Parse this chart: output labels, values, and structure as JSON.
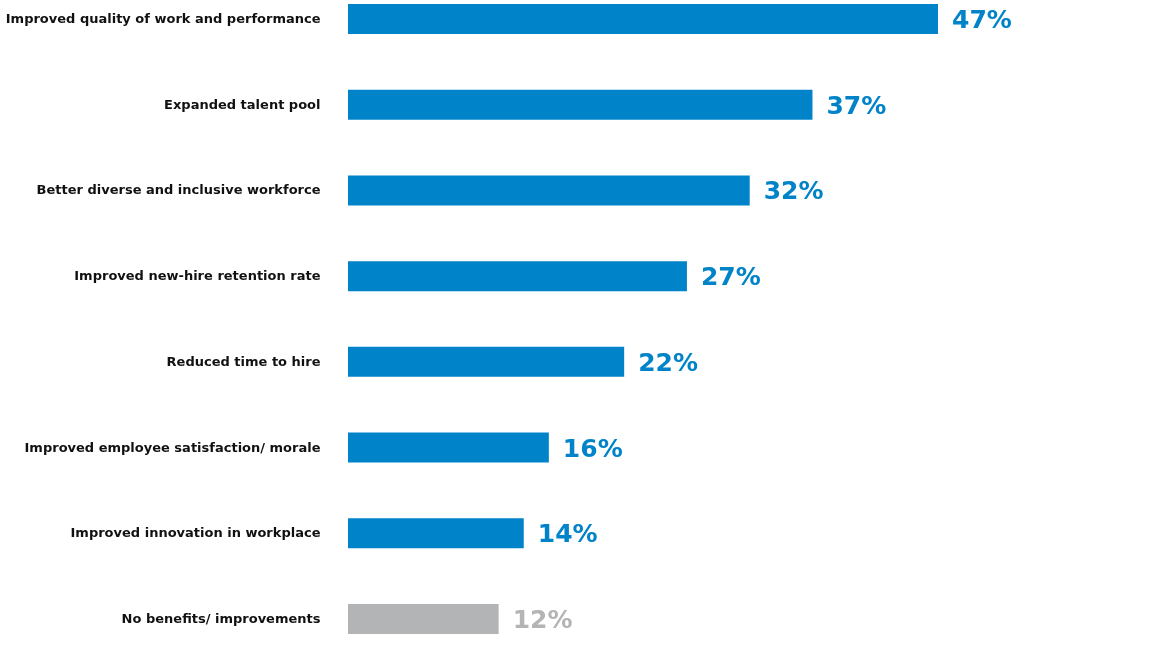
{
  "chart_data": {
    "type": "bar",
    "orientation": "horizontal",
    "categories": [
      "Improved quality of work and performance",
      "Expanded talent pool",
      "Better diverse and inclusive workforce",
      "Improved new-hire retention rate",
      "Reduced time to hire",
      "Improved employee satisfaction/ morale",
      "Improved innovation in workplace",
      "No benefits/ improvements"
    ],
    "values": [
      47,
      37,
      32,
      27,
      22,
      16,
      14,
      12
    ],
    "colors": [
      "#0083c9",
      "#0083c9",
      "#0083c9",
      "#0083c9",
      "#0083c9",
      "#0083c9",
      "#0083c9",
      "#b3b4b6"
    ],
    "value_labels": [
      "47%",
      "37%",
      "32%",
      "27%",
      "22%",
      "16%",
      "14%",
      "12%"
    ]
  }
}
